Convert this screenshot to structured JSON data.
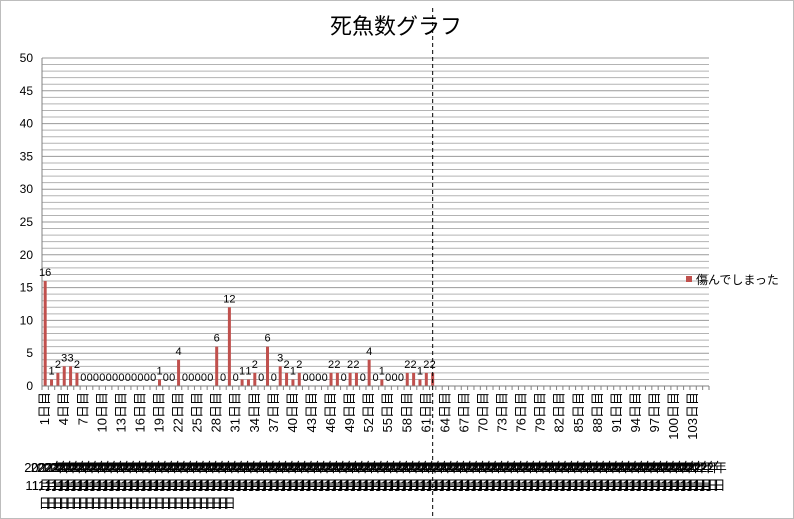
{
  "chart_data": {
    "type": "bar",
    "title": "死魚数グラフ",
    "ylim": [
      0,
      50
    ],
    "yticks": [
      0,
      5,
      10,
      15,
      20,
      25,
      30,
      35,
      40,
      45,
      50
    ],
    "minor_grid_step": 1,
    "grid": true,
    "legend_position": "right",
    "bar_color": "#c0504d",
    "series": [
      {
        "name": "傷んでしまった",
        "values": [
          16,
          1,
          2,
          3,
          3,
          2,
          0,
          0,
          0,
          0,
          0,
          0,
          0,
          0,
          0,
          0,
          0,
          0,
          1,
          0,
          0,
          4,
          0,
          0,
          0,
          0,
          0,
          6,
          0,
          12,
          0,
          1,
          1,
          2,
          0,
          6,
          0,
          3,
          2,
          1,
          2,
          0,
          0,
          0,
          0,
          2,
          2,
          0,
          2,
          2,
          0,
          4,
          0,
          1,
          0,
          0,
          0,
          2,
          2,
          1,
          2,
          2
        ]
      }
    ],
    "category_count": 105,
    "x_tick_labels": [
      "1日目",
      "4日目",
      "7日目",
      "10日目",
      "13日目",
      "16日目",
      "19日目",
      "22日目",
      "25日目",
      "28日目",
      "31日目",
      "34日目",
      "37日目",
      "40日目",
      "43日目",
      "46日目",
      "49日目",
      "52日目",
      "55日目",
      "58日目",
      "61日目",
      "64日目",
      "67日目",
      "70日目",
      "73日目",
      "76日目",
      "79日目",
      "82日目",
      "85日目",
      "88日目",
      "91日目",
      "94日目",
      "97日目",
      "100日目",
      "103日目"
    ],
    "date_prefix": "2022年11月",
    "marker_line_category": 62
  }
}
